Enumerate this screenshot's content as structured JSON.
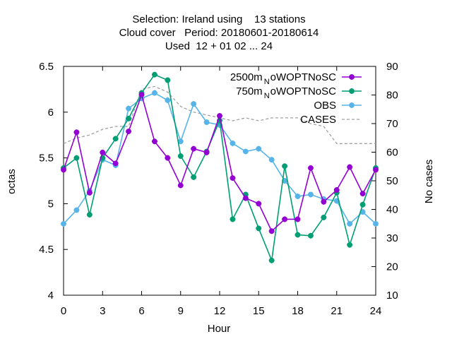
{
  "chart_data": {
    "type": "line",
    "title_lines": [
      "Selection: Ireland using    13 stations",
      "Cloud cover   Period: 20180601-20180614",
      "Used  12 + 01 02 ... 24"
    ],
    "xlabel": "Hour",
    "ylabel": "octas",
    "y2label": "No cases",
    "xlim": [
      0,
      24
    ],
    "ylim": [
      4,
      6.5
    ],
    "y2lim": [
      10,
      90
    ],
    "xticks": [
      0,
      3,
      6,
      9,
      12,
      15,
      18,
      21,
      24
    ],
    "xtick_labels": [
      "0",
      "3",
      "6",
      "9",
      "12",
      "15",
      "18",
      "21",
      "24"
    ],
    "yticks": [
      4,
      4.5,
      5,
      5.5,
      6,
      6.5
    ],
    "ytick_labels": [
      "4",
      "4.5",
      "5",
      "5.5",
      "6",
      "6.5"
    ],
    "y2ticks": [
      10,
      20,
      30,
      40,
      50,
      60,
      70,
      80,
      90
    ],
    "y2tick_labels": [
      "10",
      "20",
      "30",
      "40",
      "50",
      "60",
      "70",
      "80",
      "90"
    ],
    "grid": false,
    "legend_position": "top-right",
    "x": [
      0,
      1,
      2,
      3,
      4,
      5,
      6,
      7,
      8,
      9,
      10,
      11,
      12,
      13,
      14,
      15,
      16,
      17,
      18,
      19,
      20,
      21,
      22,
      23,
      24
    ],
    "series": [
      {
        "name": "2500m",
        "name_sub": "N",
        "name_tail": "oWOPTNoSC",
        "color": "#9400d3",
        "axis": "y1",
        "style": "line-points",
        "values": [
          5.37,
          5.78,
          5.12,
          5.56,
          5.44,
          5.79,
          6.19,
          5.68,
          5.5,
          5.2,
          5.6,
          5.56,
          5.96,
          5.28,
          5.06,
          5.0,
          4.7,
          4.83,
          4.83,
          5.39,
          5.02,
          5.15,
          5.4,
          5.11,
          5.37
        ]
      },
      {
        "name": "750m",
        "name_sub": "N",
        "name_tail": "oWOPTNoSC",
        "color": "#009e73",
        "axis": "y1",
        "style": "line-points",
        "values": [
          5.39,
          5.5,
          4.88,
          5.5,
          5.71,
          5.93,
          6.21,
          6.41,
          6.35,
          5.52,
          5.29,
          5.57,
          5.91,
          4.83,
          5.1,
          4.73,
          4.38,
          5.41,
          4.66,
          4.65,
          4.85,
          5.12,
          4.55,
          4.99,
          5.39
        ]
      },
      {
        "name": "OBS",
        "color": "#56b4e9",
        "axis": "y1",
        "style": "line-points",
        "values": [
          4.78,
          4.93,
          5.14,
          5.48,
          5.42,
          6.04,
          6.15,
          6.21,
          6.13,
          5.68,
          6.09,
          5.89,
          5.86,
          5.66,
          5.57,
          5.6,
          5.48,
          5.25,
          5.08,
          5.1,
          5.05,
          5.03,
          4.78,
          4.91,
          4.78
        ]
      },
      {
        "name": "CASES",
        "color": "#a0a0a0",
        "axis": "y2",
        "style": "dashed",
        "values": [
          63,
          65,
          66,
          68,
          69,
          69,
          82,
          83,
          81,
          76,
          74,
          73,
          72,
          71,
          72,
          71,
          72,
          72,
          72,
          70,
          69,
          63,
          63,
          63,
          63
        ]
      }
    ]
  }
}
